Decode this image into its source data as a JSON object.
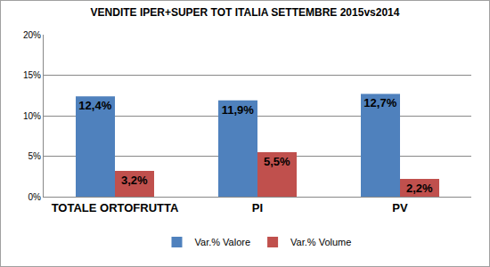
{
  "chart_data": {
    "type": "bar",
    "title": "VENDITE IPER+SUPER TOT ITALIA SETTEMBRE 2015vs2014",
    "categories": [
      "TOTALE ORTOFRUTTA",
      "PI",
      "PV"
    ],
    "series": [
      {
        "name": "Var.% Valore",
        "color": "#4f81bd",
        "values": [
          12.4,
          11.9,
          12.7
        ],
        "value_labels": [
          "12,4%",
          "11,9%",
          "12,7%"
        ]
      },
      {
        "name": "Var.% Volume",
        "color": "#c0504d",
        "values": [
          3.2,
          5.5,
          2.2
        ],
        "value_labels": [
          "3,2%",
          "5,5%",
          "2,2%"
        ]
      }
    ],
    "ylim": [
      0,
      20
    ],
    "yticks": [
      {
        "value": 0,
        "label": "0%"
      },
      {
        "value": 5,
        "label": "5%"
      },
      {
        "value": 10,
        "label": "10%"
      },
      {
        "value": 15,
        "label": "15%"
      },
      {
        "value": 20,
        "label": "20%"
      }
    ],
    "grid": true,
    "legend": "bottom",
    "data_labels": true
  }
}
